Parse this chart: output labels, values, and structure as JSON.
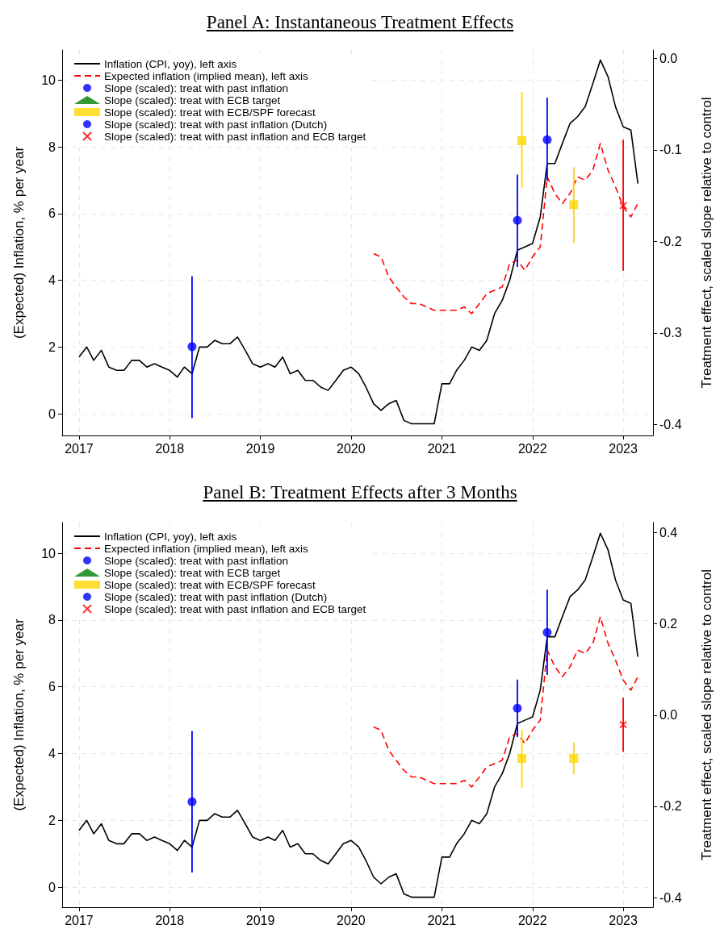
{
  "chart_data": [
    {
      "type": "line",
      "title": "Panel A: Instantaneous Treatment Effects",
      "ylabel": "(Expected) Inflation, % per year",
      "y2label": "Treatment effect, scaled slope relative to control",
      "xlim": [
        "2016-10-25",
        "2023-05-01"
      ],
      "xticks": [
        "2017",
        "2018",
        "2019",
        "2020",
        "2021",
        "2022",
        "2023"
      ],
      "ylim": [
        -0.65,
        10.9
      ],
      "yticks": [
        0,
        2,
        4,
        6,
        8,
        10
      ],
      "y2lim": [
        -0.412,
        0.009
      ],
      "y2ticks": [
        -0.4,
        -0.3,
        -0.2,
        -0.1,
        {
          "value": 0,
          "label": "0.0"
        }
      ],
      "grid": true,
      "legend": "top left",
      "series": [
        {
          "name": "Inflation (CPI, yoy), left axis",
          "color": "#000000",
          "line_style": "solid",
          "marker": "none",
          "x": [
            "2017-01",
            "2017-02",
            "2017-03",
            "2017-04",
            "2017-05",
            "2017-06",
            "2017-07",
            "2017-08",
            "2017-09",
            "2017-10",
            "2017-11",
            "2017-12",
            "2018-01",
            "2018-02",
            "2018-03",
            "2018-04",
            "2018-05",
            "2018-06",
            "2018-07",
            "2018-08",
            "2018-09",
            "2018-10",
            "2018-11",
            "2018-12",
            "2019-01",
            "2019-02",
            "2019-03",
            "2019-04",
            "2019-05",
            "2019-06",
            "2019-07",
            "2019-08",
            "2019-09",
            "2019-10",
            "2019-11",
            "2019-12",
            "2020-01",
            "2020-02",
            "2020-03",
            "2020-04",
            "2020-05",
            "2020-06",
            "2020-07",
            "2020-08",
            "2020-09",
            "2020-10",
            "2020-11",
            "2020-12",
            "2021-01",
            "2021-02",
            "2021-03",
            "2021-04",
            "2021-05",
            "2021-06",
            "2021-07",
            "2021-08",
            "2021-09",
            "2021-10",
            "2021-11",
            "2021-12",
            "2022-01",
            "2022-02",
            "2022-03",
            "2022-04",
            "2022-05",
            "2022-06",
            "2022-07",
            "2022-08",
            "2022-09",
            "2022-10",
            "2022-11",
            "2022-12",
            "2023-01",
            "2023-02",
            "2023-03"
          ],
          "values": [
            1.7,
            2.0,
            1.6,
            1.9,
            1.4,
            1.3,
            1.3,
            1.6,
            1.6,
            1.4,
            1.5,
            1.4,
            1.3,
            1.1,
            1.4,
            1.2,
            2.0,
            2.0,
            2.2,
            2.1,
            2.1,
            2.3,
            1.9,
            1.5,
            1.4,
            1.5,
            1.4,
            1.7,
            1.2,
            1.3,
            1.0,
            1.0,
            0.8,
            0.7,
            1.0,
            1.3,
            1.4,
            1.2,
            0.8,
            0.3,
            0.1,
            0.3,
            0.4,
            -0.2,
            -0.3,
            -0.3,
            -0.3,
            -0.3,
            0.9,
            0.9,
            1.3,
            1.6,
            2.0,
            1.9,
            2.2,
            3.0,
            3.4,
            4.0,
            4.9,
            5.0,
            5.1,
            5.9,
            7.5,
            7.5,
            8.1,
            8.7,
            8.9,
            9.2,
            9.9,
            10.6,
            10.1,
            9.2,
            8.6,
            8.5,
            6.9
          ]
        },
        {
          "name": "Expected inflation (implied mean), left axis",
          "color": "#ff0000",
          "line_style": "dashed",
          "marker": "none",
          "x": [
            "2020-04",
            "2020-05",
            "2020-06",
            "2020-07",
            "2020-08",
            "2020-09",
            "2020-10",
            "2020-11",
            "2020-12",
            "2021-01",
            "2021-02",
            "2021-03",
            "2021-04",
            "2021-05",
            "2021-06",
            "2021-07",
            "2021-08",
            "2021-09",
            "2021-10",
            "2021-11",
            "2021-12",
            "2022-01",
            "2022-02",
            "2022-03",
            "2022-04",
            "2022-05",
            "2022-06",
            "2022-07",
            "2022-08",
            "2022-09",
            "2022-10",
            "2022-11",
            "2022-12",
            "2023-01",
            "2023-02",
            "2023-03"
          ],
          "values": [
            4.8,
            4.7,
            4.1,
            3.8,
            3.5,
            3.3,
            3.3,
            3.2,
            3.1,
            3.1,
            3.1,
            3.1,
            3.2,
            3.0,
            3.3,
            3.6,
            3.7,
            3.8,
            4.5,
            4.6,
            4.3,
            4.7,
            5.0,
            7.1,
            6.6,
            6.3,
            6.6,
            7.1,
            7.0,
            7.3,
            8.1,
            7.3,
            6.8,
            6.2,
            5.9,
            6.3
          ]
        },
        {
          "name": "Slope (scaled): treat with past inflation",
          "type": "scatter",
          "axis": "y2",
          "color": "#0000ff",
          "marker": "circle",
          "x": [
            "2021-11",
            "2022-03"
          ],
          "values": [
            -0.177,
            -0.089
          ],
          "errors": [
            [
              -0.228,
              -0.127
            ],
            [
              -0.134,
              -0.043
            ]
          ]
        },
        {
          "name": "Slope (scaled): treat with ECB target",
          "type": "scatter",
          "axis": "y2",
          "color": "#008000",
          "marker": "triangle"
        },
        {
          "name": "Slope (scaled): treat with ECB/SPF forecast",
          "type": "scatter",
          "axis": "y2",
          "color": "#ffd700",
          "marker": "square",
          "x": [
            "2021-11-19",
            "2022-06-16"
          ],
          "values": [
            -0.09,
            -0.16
          ],
          "errors": [
            [
              -0.142,
              -0.037
            ],
            [
              -0.202,
              -0.119
            ]
          ]
        },
        {
          "name": "Slope (scaled): treat with past inflation (Dutch)",
          "type": "scatter",
          "axis": "y2",
          "color": "#0000ff",
          "marker": "circle",
          "x": [
            "2018-04"
          ],
          "values": [
            -0.315
          ],
          "errors": [
            [
              -0.393,
              -0.238
            ]
          ]
        },
        {
          "name": "Slope (scaled): treat with past inflation and ECB target",
          "type": "scatter",
          "axis": "y2",
          "color": "#ff0000",
          "marker": "cross",
          "x": [
            "2023-01"
          ],
          "values": [
            -0.161
          ],
          "errors": [
            [
              -0.232,
              -0.089
            ]
          ]
        }
      ]
    },
    {
      "type": "line",
      "title": "Panel B: Treatment Effects after 3 Months",
      "ylabel": "(Expected) Inflation, % per year",
      "y2label": "Treatment effect, scaled slope relative to control",
      "xlim": [
        "2016-10-25",
        "2023-05-01"
      ],
      "xticks": [
        "2017",
        "2018",
        "2019",
        "2020",
        "2021",
        "2022",
        "2023"
      ],
      "ylim": [
        -0.6,
        10.92
      ],
      "yticks": [
        0,
        2,
        4,
        6,
        8,
        10
      ],
      "y2lim": [
        -0.421,
        0.422
      ],
      "y2ticks": [
        -0.4,
        -0.2,
        {
          "value": 0,
          "label": "0.0"
        },
        0.2,
        0.4
      ],
      "grid": true,
      "legend": "top left",
      "series": [
        {
          "name": "Inflation (CPI, yoy), left axis",
          "color": "#000000",
          "line_style": "solid",
          "marker": "none",
          "x": [
            "2017-01",
            "2017-02",
            "2017-03",
            "2017-04",
            "2017-05",
            "2017-06",
            "2017-07",
            "2017-08",
            "2017-09",
            "2017-10",
            "2017-11",
            "2017-12",
            "2018-01",
            "2018-02",
            "2018-03",
            "2018-04",
            "2018-05",
            "2018-06",
            "2018-07",
            "2018-08",
            "2018-09",
            "2018-10",
            "2018-11",
            "2018-12",
            "2019-01",
            "2019-02",
            "2019-03",
            "2019-04",
            "2019-05",
            "2019-06",
            "2019-07",
            "2019-08",
            "2019-09",
            "2019-10",
            "2019-11",
            "2019-12",
            "2020-01",
            "2020-02",
            "2020-03",
            "2020-04",
            "2020-05",
            "2020-06",
            "2020-07",
            "2020-08",
            "2020-09",
            "2020-10",
            "2020-11",
            "2020-12",
            "2021-01",
            "2021-02",
            "2021-03",
            "2021-04",
            "2021-05",
            "2021-06",
            "2021-07",
            "2021-08",
            "2021-09",
            "2021-10",
            "2021-11",
            "2021-12",
            "2022-01",
            "2022-02",
            "2022-03",
            "2022-04",
            "2022-05",
            "2022-06",
            "2022-07",
            "2022-08",
            "2022-09",
            "2022-10",
            "2022-11",
            "2022-12",
            "2023-01",
            "2023-02",
            "2023-03"
          ],
          "values": [
            1.7,
            2.0,
            1.6,
            1.9,
            1.4,
            1.3,
            1.3,
            1.6,
            1.6,
            1.4,
            1.5,
            1.4,
            1.3,
            1.1,
            1.4,
            1.2,
            2.0,
            2.0,
            2.2,
            2.1,
            2.1,
            2.3,
            1.9,
            1.5,
            1.4,
            1.5,
            1.4,
            1.7,
            1.2,
            1.3,
            1.0,
            1.0,
            0.8,
            0.7,
            1.0,
            1.3,
            1.4,
            1.2,
            0.8,
            0.3,
            0.1,
            0.3,
            0.4,
            -0.2,
            -0.3,
            -0.3,
            -0.3,
            -0.3,
            0.9,
            0.9,
            1.3,
            1.6,
            2.0,
            1.9,
            2.2,
            3.0,
            3.4,
            4.0,
            4.9,
            5.0,
            5.1,
            5.9,
            7.5,
            7.5,
            8.1,
            8.7,
            8.9,
            9.2,
            9.9,
            10.6,
            10.1,
            9.2,
            8.6,
            8.5,
            6.9
          ]
        },
        {
          "name": "Expected inflation (implied mean), left axis",
          "color": "#ff0000",
          "line_style": "dashed",
          "marker": "none",
          "x": [
            "2020-04",
            "2020-05",
            "2020-06",
            "2020-07",
            "2020-08",
            "2020-09",
            "2020-10",
            "2020-11",
            "2020-12",
            "2021-01",
            "2021-02",
            "2021-03",
            "2021-04",
            "2021-05",
            "2021-06",
            "2021-07",
            "2021-08",
            "2021-09",
            "2021-10",
            "2021-11",
            "2021-12",
            "2022-01",
            "2022-02",
            "2022-03",
            "2022-04",
            "2022-05",
            "2022-06",
            "2022-07",
            "2022-08",
            "2022-09",
            "2022-10",
            "2022-11",
            "2022-12",
            "2023-01",
            "2023-02",
            "2023-03"
          ],
          "values": [
            4.8,
            4.7,
            4.1,
            3.8,
            3.5,
            3.3,
            3.3,
            3.2,
            3.1,
            3.1,
            3.1,
            3.1,
            3.2,
            3.0,
            3.3,
            3.6,
            3.7,
            3.8,
            4.5,
            4.6,
            4.3,
            4.7,
            5.0,
            7.1,
            6.6,
            6.3,
            6.6,
            7.1,
            7.0,
            7.3,
            8.1,
            7.3,
            6.8,
            6.2,
            5.9,
            6.3
          ]
        },
        {
          "name": "Slope (scaled): treat with past inflation",
          "type": "scatter",
          "axis": "y2",
          "color": "#0000ff",
          "marker": "circle",
          "x": [
            "2021-11",
            "2022-03"
          ],
          "values": [
            0.015,
            0.181
          ],
          "errors": [
            [
              -0.048,
              0.078
            ],
            [
              0.088,
              0.275
            ]
          ]
        },
        {
          "name": "Slope (scaled): treat with ECB target",
          "type": "scatter",
          "axis": "y2",
          "color": "#008000",
          "marker": "triangle"
        },
        {
          "name": "Slope (scaled): treat with ECB/SPF forecast",
          "type": "scatter",
          "axis": "y2",
          "color": "#ffd700",
          "marker": "square",
          "x": [
            "2021-11-19",
            "2022-06-16"
          ],
          "values": [
            -0.095,
            -0.095
          ],
          "errors": [
            [
              -0.159,
              -0.032
            ],
            [
              -0.13,
              -0.06
            ]
          ]
        },
        {
          "name": "Slope (scaled): treat with past inflation (Dutch)",
          "type": "scatter",
          "axis": "y2",
          "color": "#0000ff",
          "marker": "circle",
          "x": [
            "2018-04"
          ],
          "values": [
            -0.19
          ],
          "errors": [
            [
              -0.345,
              -0.035
            ]
          ]
        },
        {
          "name": "Slope (scaled): treat with past inflation and ECB target",
          "type": "scatter",
          "axis": "y2",
          "color": "#ff0000",
          "marker": "cross",
          "x": [
            "2023-01"
          ],
          "values": [
            -0.021
          ],
          "errors": [
            [
              -0.081,
              0.038
            ]
          ]
        }
      ]
    }
  ]
}
